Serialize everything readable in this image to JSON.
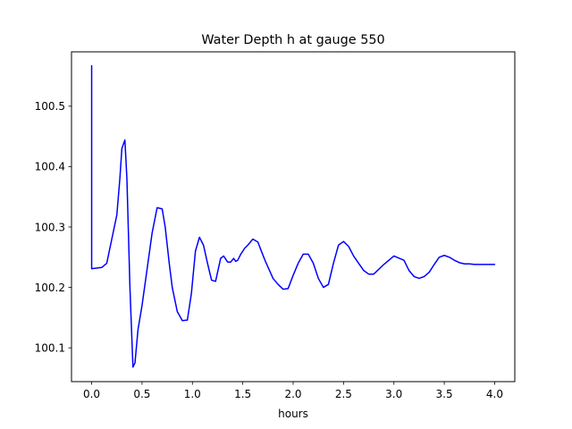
{
  "chart_data": {
    "type": "line",
    "title": "Water Depth h at gauge 550",
    "xlabel": "hours",
    "ylabel": "",
    "xlim": [
      -0.2,
      4.2
    ],
    "ylim": [
      100.044,
      100.59
    ],
    "xticks": [
      0.0,
      0.5,
      1.0,
      1.5,
      2.0,
      2.5,
      3.0,
      3.5,
      4.0
    ],
    "xtick_labels": [
      "0.0",
      "0.5",
      "1.0",
      "1.5",
      "2.0",
      "2.5",
      "3.0",
      "3.5",
      "4.0"
    ],
    "yticks": [
      100.1,
      100.2,
      100.3,
      100.4,
      100.5
    ],
    "ytick_labels": [
      "100.1",
      "100.2",
      "100.3",
      "100.4",
      "100.5"
    ],
    "grid": false,
    "series": [
      {
        "color": "#0000ff",
        "x": [
          0.0,
          0.0,
          0.0,
          0.1,
          0.15,
          0.2,
          0.25,
          0.28,
          0.3,
          0.33,
          0.35,
          0.38,
          0.41,
          0.43,
          0.46,
          0.5,
          0.55,
          0.6,
          0.65,
          0.7,
          0.73,
          0.77,
          0.8,
          0.85,
          0.9,
          0.95,
          0.99,
          1.03,
          1.07,
          1.11,
          1.15,
          1.19,
          1.23,
          1.28,
          1.31,
          1.35,
          1.38,
          1.41,
          1.43,
          1.45,
          1.48,
          1.52,
          1.55,
          1.6,
          1.65,
          1.68,
          1.72,
          1.76,
          1.8,
          1.85,
          1.9,
          1.95,
          2.0,
          2.05,
          2.1,
          2.15,
          2.2,
          2.25,
          2.3,
          2.35,
          2.4,
          2.45,
          2.5,
          2.55,
          2.6,
          2.65,
          2.7,
          2.75,
          2.8,
          2.9,
          3.0,
          3.1,
          3.15,
          3.2,
          3.25,
          3.3,
          3.35,
          3.4,
          3.45,
          3.5,
          3.55,
          3.6,
          3.65,
          3.7,
          3.75,
          3.8,
          3.85,
          3.9,
          3.95,
          4.0
        ],
        "y": [
          100.567,
          100.565,
          100.231,
          100.233,
          100.24,
          100.28,
          100.32,
          100.38,
          100.43,
          100.444,
          100.38,
          100.2,
          100.068,
          100.075,
          100.13,
          100.17,
          100.23,
          100.29,
          100.332,
          100.33,
          100.3,
          100.24,
          100.2,
          100.16,
          100.145,
          100.146,
          100.19,
          100.26,
          100.283,
          100.27,
          100.24,
          100.212,
          100.21,
          100.248,
          100.252,
          100.242,
          100.242,
          100.248,
          100.243,
          100.245,
          100.255,
          100.265,
          100.27,
          100.28,
          100.275,
          100.262,
          100.245,
          100.23,
          100.215,
          100.205,
          100.197,
          100.198,
          100.22,
          100.24,
          100.255,
          100.255,
          100.24,
          100.215,
          100.2,
          100.205,
          100.24,
          100.27,
          100.276,
          100.268,
          100.252,
          100.24,
          100.228,
          100.222,
          100.222,
          100.238,
          100.252,
          100.245,
          100.228,
          100.218,
          100.215,
          100.218,
          100.225,
          100.238,
          100.25,
          100.253,
          100.25,
          100.245,
          100.241,
          100.239,
          100.239,
          100.238,
          100.238,
          100.238,
          100.238,
          100.238
        ]
      }
    ]
  }
}
